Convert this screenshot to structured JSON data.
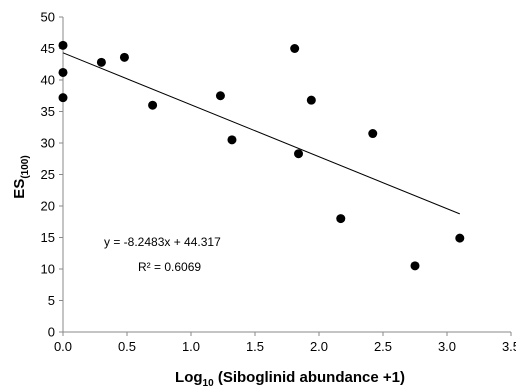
{
  "chart_data": {
    "type": "scatter",
    "title": "",
    "xlabel_main": "Log",
    "xlabel_sub": "10",
    "xlabel_rest": " (Siboglinid abundance +1)",
    "ylabel_main": "ES",
    "ylabel_sub": "(100)",
    "xlim": [
      0,
      3.5
    ],
    "ylim": [
      0,
      50
    ],
    "x_ticks": [
      0,
      0.5,
      1,
      1.5,
      2,
      2.5,
      3,
      3.5
    ],
    "x_tick_labels": [
      "0.0",
      "0.5",
      "1.0",
      "1.5",
      "2.0",
      "2.5",
      "3.0",
      "3.5"
    ],
    "y_ticks": [
      0,
      5,
      10,
      15,
      20,
      25,
      30,
      35,
      40,
      45,
      50
    ],
    "y_tick_labels": [
      "0",
      "5",
      "10",
      "15",
      "20",
      "25",
      "30",
      "35",
      "40",
      "45",
      "50"
    ],
    "grid": false,
    "legend": "none",
    "points": [
      {
        "x": 0.0,
        "y": 45.5
      },
      {
        "x": 0.0,
        "y": 41.2
      },
      {
        "x": 0.0,
        "y": 37.2
      },
      {
        "x": 0.3,
        "y": 42.8
      },
      {
        "x": 0.48,
        "y": 43.6
      },
      {
        "x": 0.7,
        "y": 36.0
      },
      {
        "x": 1.23,
        "y": 37.5
      },
      {
        "x": 1.32,
        "y": 30.5
      },
      {
        "x": 1.81,
        "y": 45.0
      },
      {
        "x": 1.84,
        "y": 28.3
      },
      {
        "x": 1.94,
        "y": 36.8
      },
      {
        "x": 2.17,
        "y": 18.0
      },
      {
        "x": 2.42,
        "y": 31.5
      },
      {
        "x": 2.75,
        "y": 10.5
      },
      {
        "x": 3.1,
        "y": 14.9
      }
    ],
    "trendline": {
      "slope": -8.2483,
      "intercept": 44.317,
      "x_range": [
        0,
        3.1
      ]
    },
    "equation_text": "y = -8.2483x + 44.317",
    "r2_text": "R² = 0.6069",
    "colors": {
      "marker": "#000000",
      "line": "#000000",
      "axis": "#888888"
    }
  }
}
